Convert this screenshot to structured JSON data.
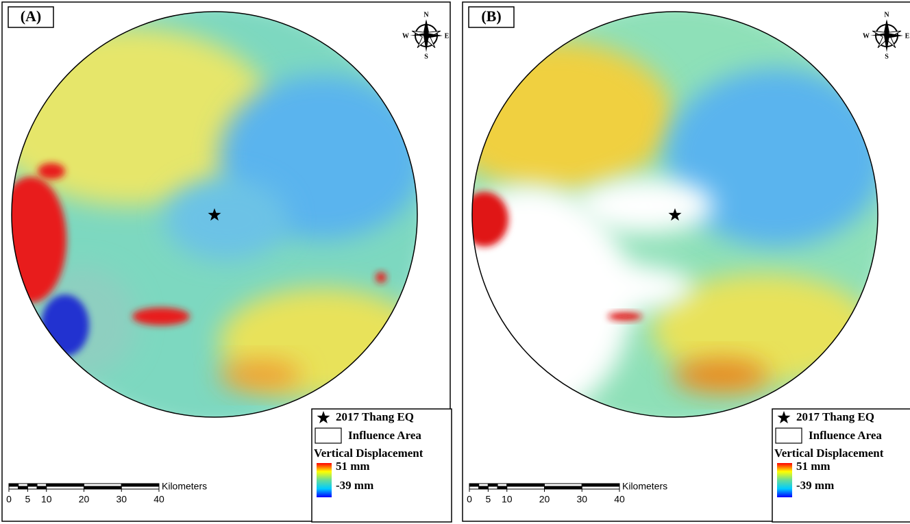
{
  "panels": [
    {
      "label": "(A)",
      "compass": {
        "n": "N",
        "s": "S",
        "w": "W",
        "e": "E"
      },
      "legend": {
        "epicenter": "2017 Thang EQ",
        "area": "Influence Area",
        "title": "Vertical Displacement",
        "max": "51 mm",
        "min": "-39 mm"
      },
      "scale": {
        "unit": "Kilometers",
        "ticks": [
          0,
          5,
          10,
          20,
          30,
          40
        ]
      }
    },
    {
      "label": "(B)",
      "compass": {
        "n": "N",
        "s": "S",
        "w": "W",
        "e": "E"
      },
      "legend": {
        "epicenter": "2017 Thang EQ",
        "area": "Influence Area",
        "title": "Vertical Displacement",
        "max": "51 mm",
        "min": "-39 mm"
      },
      "scale": {
        "unit": "Kilometers",
        "ticks": [
          0,
          5,
          10,
          20,
          30,
          40
        ]
      }
    }
  ]
}
